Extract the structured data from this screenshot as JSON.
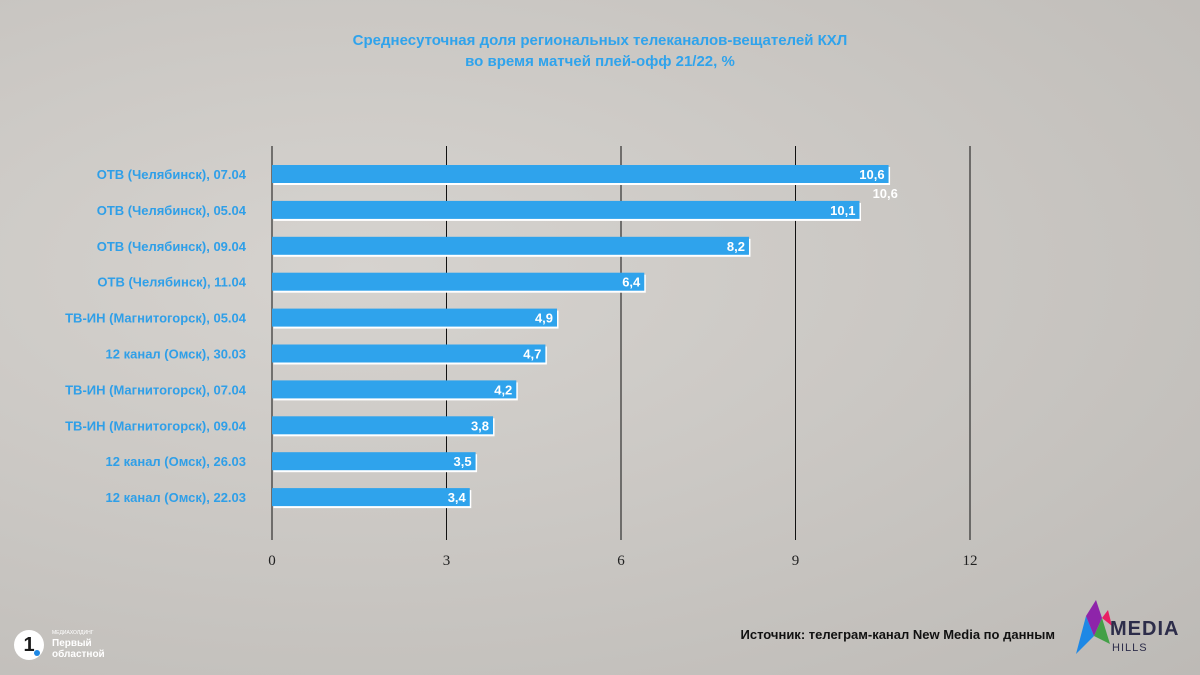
{
  "title_line1": "Среднесуточная доля региональных телеканалов-вещателей КХЛ",
  "title_line2": "во время матчей плей-офф 21/22, %",
  "source": "Источник: телеграм-канал New Media по данным",
  "logo_left": {
    "small": "МЕДИАХОЛДИНГ",
    "name_line1": "Первый",
    "name_line2": "областной",
    "digit": "1"
  },
  "logo_right": {
    "word1": "MEDIA",
    "word2": "HILLS"
  },
  "chart_data": {
    "type": "bar",
    "orientation": "horizontal",
    "title": "Среднесуточная доля региональных телеканалов-вещателей КХЛ во время матчей плей-офф 21/22, %",
    "categories": [
      "ОТВ (Челябинск), 07.04",
      "ОТВ (Челябинск), 05.04",
      "ОТВ (Челябинск), 09.04",
      "ОТВ (Челябинск), 11.04",
      "ТВ-ИН (Магнитогорск), 05.04",
      "12 канал (Омск), 30.03",
      "ТВ-ИН (Магнитогорск), 07.04",
      "ТВ-ИН (Магнитогорск), 09.04",
      "12 канал (Омск), 26.03",
      "12 канал (Омск), 22.03"
    ],
    "values": [
      10.6,
      10.1,
      8.2,
      6.4,
      4.9,
      4.7,
      4.2,
      3.8,
      3.5,
      3.4
    ],
    "value_labels": [
      "10,6",
      "10,1",
      "8,2",
      "6,4",
      "4,9",
      "4,7",
      "4,2",
      "3,8",
      "3,5",
      "3,4"
    ],
    "extra_label": "10,6",
    "xlim": [
      0,
      12
    ],
    "xticks": [
      0,
      3,
      6,
      9,
      12
    ],
    "grid": true,
    "bar_color": "#2fa3ec",
    "label_color": "#2f9fe8"
  }
}
